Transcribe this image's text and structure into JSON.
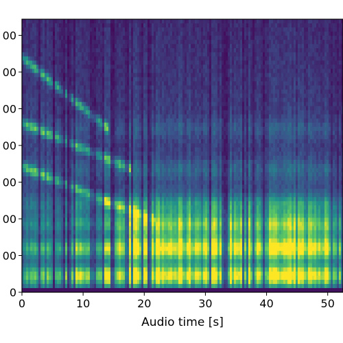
{
  "chart_data": {
    "type": "heatmap",
    "xlabel": "Audio time [s]",
    "ylabel": "",
    "xlim": [
      0,
      52.5
    ],
    "x_ticks": [
      "0",
      "10",
      "20",
      "30",
      "40",
      "50"
    ],
    "y_ticks": [
      "0",
      "00",
      "00",
      "00",
      "00",
      "00",
      "00",
      "00"
    ],
    "colormap": "viridis",
    "colormap_stops": [
      "#440154",
      "#3b528b",
      "#21918c",
      "#5ec962",
      "#fde725"
    ],
    "grid": false,
    "legend": "none",
    "description_of_values": "relative intensity 0-1",
    "bands": [
      {
        "row": 0.06,
        "strength": 1.0
      },
      {
        "row": 0.16,
        "strength": 0.8
      },
      {
        "row": 0.25,
        "strength": 0.7
      },
      {
        "row": 0.32,
        "strength": 0.5
      },
      {
        "row": 0.45,
        "strength": 0.25
      },
      {
        "row": 0.6,
        "strength": 0.2
      }
    ],
    "harmonic_tracks": [
      {
        "y_start": 0.46,
        "y_end": 0.26,
        "x_end": 22
      },
      {
        "y_start": 0.62,
        "y_end": 0.45,
        "x_end": 18
      },
      {
        "y_start": 0.86,
        "y_end": 0.6,
        "x_end": 14
      }
    ]
  }
}
